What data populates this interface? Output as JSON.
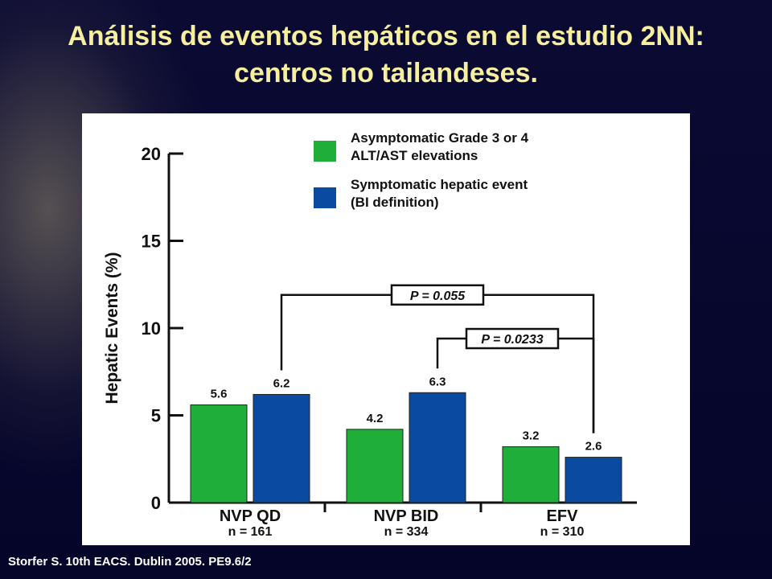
{
  "title": "Análisis de eventos hepáticos en el estudio 2NN: centros no tailandeses.",
  "footer": "Storfer S. 10th EACS. Dublin 2005. PE9.6/2",
  "colors": {
    "background": "#05052a",
    "title": "#f6ef9e",
    "green": "#1fae3a",
    "blue": "#0a4aa0"
  },
  "chart_data": {
    "type": "bar",
    "ylabel": "Hepatic Events (%)",
    "ylim": [
      0,
      20
    ],
    "yticks": [
      0,
      5,
      10,
      15,
      20
    ],
    "categories": [
      "NVP QD",
      "NVP BID",
      "EFV"
    ],
    "category_n": [
      "n = 161",
      "n = 334",
      "n = 310"
    ],
    "series": [
      {
        "name": "Asymptomatic Grade 3 or 4 ALT/AST elevations",
        "color": "#1fae3a",
        "values": [
          5.6,
          4.2,
          3.2
        ],
        "labels": [
          "5.6",
          "4.2",
          "3.2"
        ]
      },
      {
        "name": "Symptomatic hepatic event (BI definition)",
        "color": "#0a4aa0",
        "values": [
          6.2,
          6.3,
          2.6
        ],
        "labels": [
          "6.2",
          "6.3",
          "2.6"
        ]
      }
    ],
    "legend": {
      "position": "top-right",
      "entries": [
        {
          "line1": "Asymptomatic Grade 3 or 4",
          "line2": "ALT/AST elevations",
          "color": "#1fae3a"
        },
        {
          "line1": "Symptomatic hepatic event",
          "line2": "(BI definition)",
          "color": "#0a4aa0"
        }
      ]
    },
    "annotations": [
      {
        "text": "P = 0.055",
        "from": {
          "category": 0,
          "series": 1
        },
        "to": {
          "category": 2,
          "series": 1
        }
      },
      {
        "text": "P = 0.0233",
        "from": {
          "category": 1,
          "series": 1
        },
        "to": {
          "category": 2,
          "series": 1
        }
      }
    ]
  }
}
